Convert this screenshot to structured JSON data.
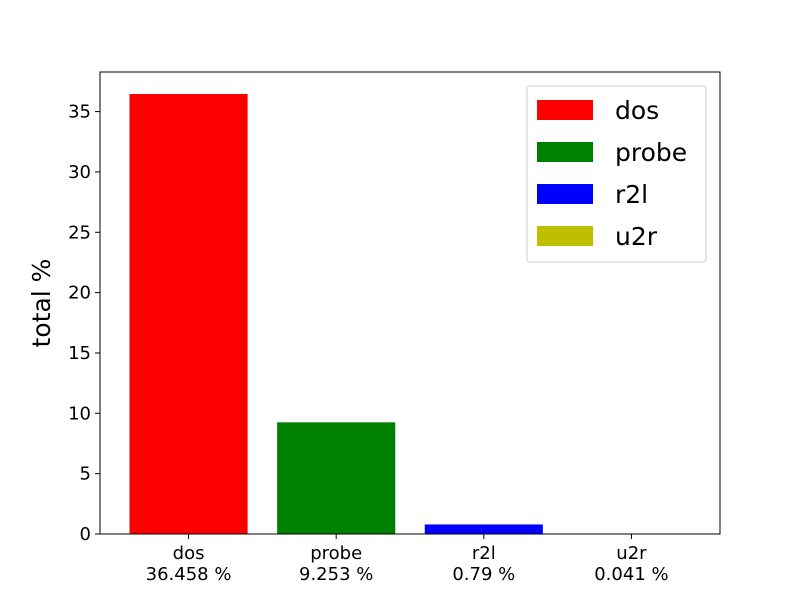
{
  "chart_data": {
    "type": "bar",
    "categories": [
      "dos",
      "probe",
      "r2l",
      "u2r"
    ],
    "category_tick_labels": [
      [
        "dos",
        "36.458 %"
      ],
      [
        "probe",
        "9.253 %"
      ],
      [
        "r2l",
        "0.79 %"
      ],
      [
        "u2r",
        "0.041 %"
      ]
    ],
    "values": [
      36.458,
      9.253,
      0.79,
      0.041
    ],
    "colors": [
      "#ff0000",
      "#008000",
      "#0000ff",
      "#bfbf00"
    ],
    "legend": [
      "dos",
      "probe",
      "r2l",
      "u2r"
    ],
    "legend_position": "upper-right",
    "title": "",
    "xlabel": "",
    "ylabel": "total %",
    "ylim": [
      0,
      38.28
    ],
    "yticks": [
      0,
      5,
      10,
      15,
      20,
      25,
      30,
      35
    ],
    "grid": false
  }
}
